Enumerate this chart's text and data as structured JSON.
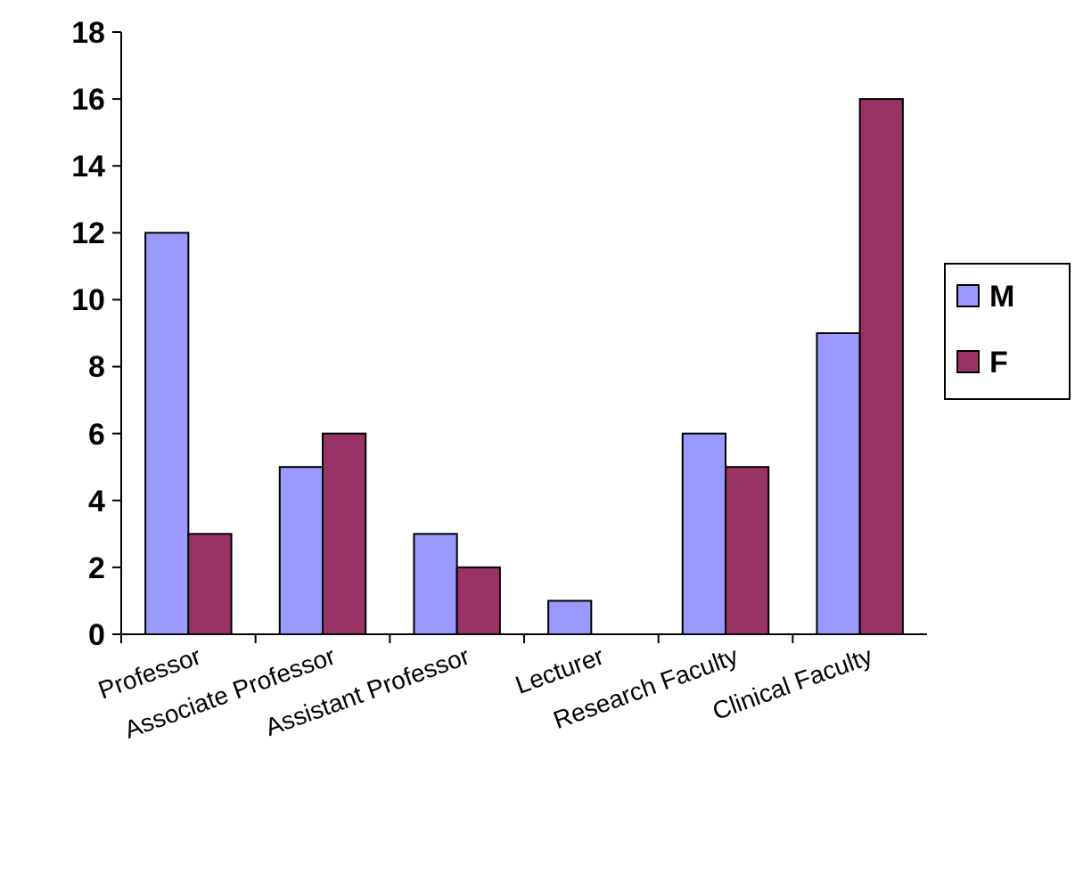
{
  "chart_data": {
    "type": "bar",
    "categories": [
      "Professor",
      "Associate Professor",
      "Assistant Professor",
      "Lecturer",
      "Research Faculty",
      "Clinical Faculty"
    ],
    "series": [
      {
        "name": "M",
        "color": "#9999ff",
        "values": [
          12,
          5,
          3,
          1,
          6,
          9
        ]
      },
      {
        "name": "F",
        "color": "#993366",
        "values": [
          3,
          6,
          2,
          0,
          5,
          16
        ]
      }
    ],
    "ylim": [
      0,
      18
    ],
    "yticks": [
      0,
      2,
      4,
      6,
      8,
      10,
      12,
      14,
      16,
      18
    ],
    "grid": false,
    "legend": "right"
  }
}
